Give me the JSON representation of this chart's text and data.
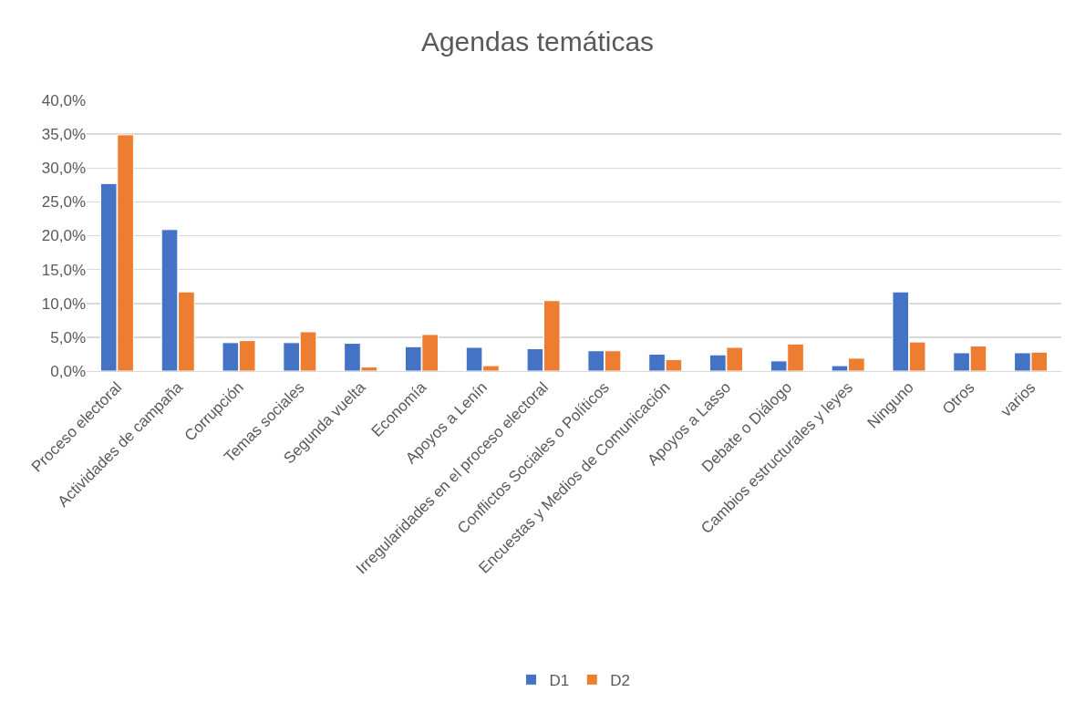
{
  "chart_data": {
    "type": "bar",
    "title": "Agendas temáticas",
    "categories": [
      "Proceso electoral",
      "Actividades de campaña",
      "Corrupción",
      "Temas sociales",
      "Segunda vuelta",
      "Economía",
      "Apoyos a Lenín",
      "Irregularidades en el proceso electoral",
      "Conflictos Sociales o Políticos",
      "Encuestas y Medios de Comunicación",
      "Apoyos a Lasso",
      "Debate o Diálogo",
      "Cambios estructurales y leyes",
      "Ninguno",
      "Otros",
      "varios"
    ],
    "series": [
      {
        "name": "D1",
        "color": "#4472c4",
        "values": [
          27.7,
          20.9,
          4.2,
          4.2,
          4.1,
          3.6,
          3.5,
          3.3,
          3.0,
          2.5,
          2.4,
          1.5,
          0.8,
          11.7,
          2.7,
          2.7
        ]
      },
      {
        "name": "D2",
        "color": "#ed7d31",
        "values": [
          34.9,
          11.7,
          4.5,
          5.8,
          0.6,
          5.4,
          0.8,
          10.4,
          3.0,
          1.7,
          3.5,
          4.0,
          1.9,
          4.3,
          3.7,
          2.8
        ]
      }
    ],
    "ylim": [
      0,
      40
    ],
    "yticks": [
      {
        "value": 0,
        "label": "0,0%"
      },
      {
        "value": 5,
        "label": "5,0%"
      },
      {
        "value": 10,
        "label": "10,0%"
      },
      {
        "value": 15,
        "label": "15,0%"
      },
      {
        "value": 20,
        "label": "20,0%"
      },
      {
        "value": 25,
        "label": "25,0%"
      },
      {
        "value": 30,
        "label": "30,0%"
      },
      {
        "value": 35,
        "label": "35,0%"
      },
      {
        "value": 40,
        "label": "40,0%"
      }
    ],
    "grid": "y",
    "legend": "bottom"
  }
}
